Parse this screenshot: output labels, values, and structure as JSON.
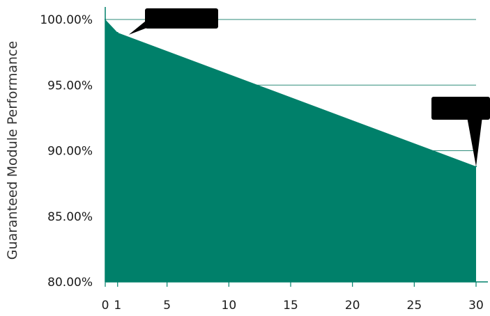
{
  "chart_data": {
    "type": "area",
    "title": "",
    "xlabel": "",
    "ylabel": "Guaranteed Module Performance",
    "x": [
      0,
      1,
      30
    ],
    "y": [
      100.0,
      99.0,
      88.8
    ],
    "xlim": [
      0,
      30
    ],
    "ylim": [
      80,
      100
    ],
    "x_ticks": [
      0,
      1,
      5,
      10,
      15,
      20,
      25,
      30
    ],
    "x_tick_labels": [
      "0",
      "1",
      "5",
      "10",
      "15",
      "20",
      "25",
      "30"
    ],
    "y_ticks": [
      80,
      85,
      90,
      95,
      100
    ],
    "y_tick_labels": [
      "80.00%",
      "85.00%",
      "90.00%",
      "95.00%",
      "100.00%"
    ],
    "grid": "horizontal",
    "annotations": [
      {
        "text": "",
        "target_x": 1,
        "target_y": 99.0
      },
      {
        "text": "",
        "target_x": 30,
        "target_y": 88.8
      }
    ],
    "colors": {
      "fill": "#00806a",
      "grid": "#2e8b7a",
      "axis": "#00806a",
      "callout": "#000000"
    }
  }
}
